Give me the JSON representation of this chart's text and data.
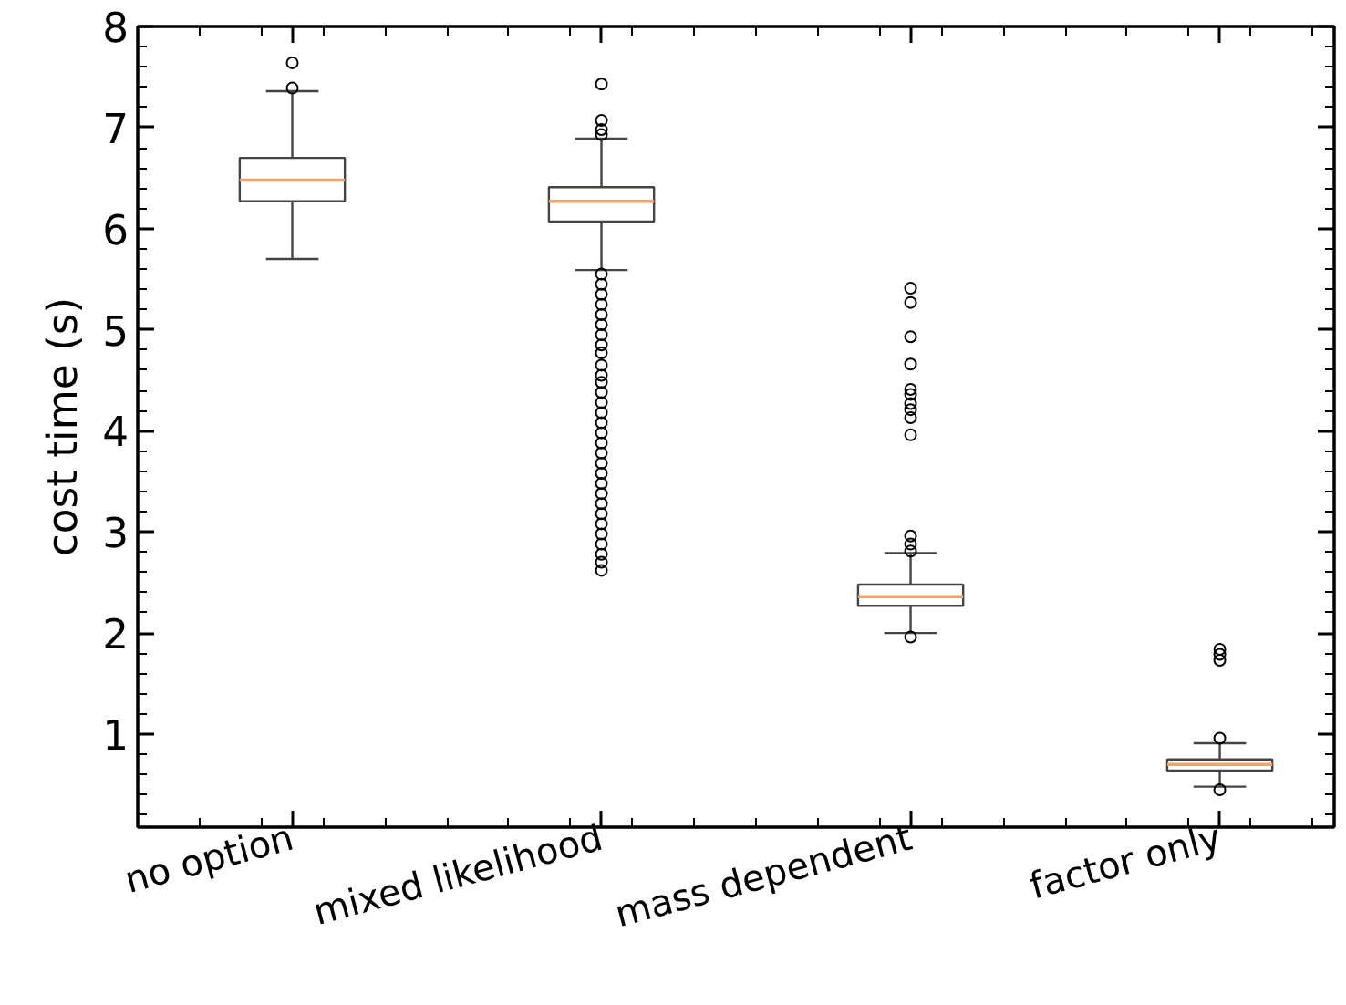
{
  "chart_data": {
    "type": "box",
    "ylabel": "cost time (s)",
    "categories": [
      "no option",
      "mixed likelihood",
      "mass dependent",
      "factor only"
    ],
    "ylim": [
      0.08,
      8
    ],
    "yticks": [
      1,
      2,
      3,
      4,
      5,
      6,
      7,
      8
    ],
    "series": [
      {
        "color": "#444444",
        "boxes": [
          {
            "low": 5.7,
            "q1": 6.27,
            "median": 6.48,
            "q3": 6.7,
            "high": 7.36,
            "outliers": [
              7.39,
              7.64
            ]
          },
          {
            "low": 5.59,
            "q1": 6.07,
            "median": 6.27,
            "q3": 6.41,
            "high": 6.89,
            "outliers": [
              7.43,
              7.07,
              6.98,
              6.93,
              5.55,
              5.45,
              5.35,
              5.25,
              5.15,
              5.05,
              4.95,
              4.85,
              4.77,
              4.65,
              4.55,
              4.48,
              4.38,
              4.28,
              4.18,
              4.08,
              3.98,
              3.88,
              3.78,
              3.68,
              3.58,
              3.48,
              3.38,
              3.28,
              3.18,
              3.08,
              2.98,
              2.88,
              2.78,
              2.7,
              2.62
            ]
          },
          {
            "low": 2.0,
            "q1": 2.27,
            "median": 2.36,
            "q3": 2.48,
            "high": 2.79,
            "outliers": [
              5.41,
              5.27,
              4.93,
              4.66,
              4.41,
              4.36,
              4.27,
              4.21,
              4.13,
              3.96,
              2.96,
              2.88,
              2.81,
              1.96
            ]
          },
          {
            "low": 0.48,
            "q1": 0.64,
            "median": 0.7,
            "q3": 0.75,
            "high": 0.91,
            "outliers": [
              1.84,
              1.79,
              1.73,
              0.96,
              0.45
            ]
          }
        ]
      }
    ]
  }
}
